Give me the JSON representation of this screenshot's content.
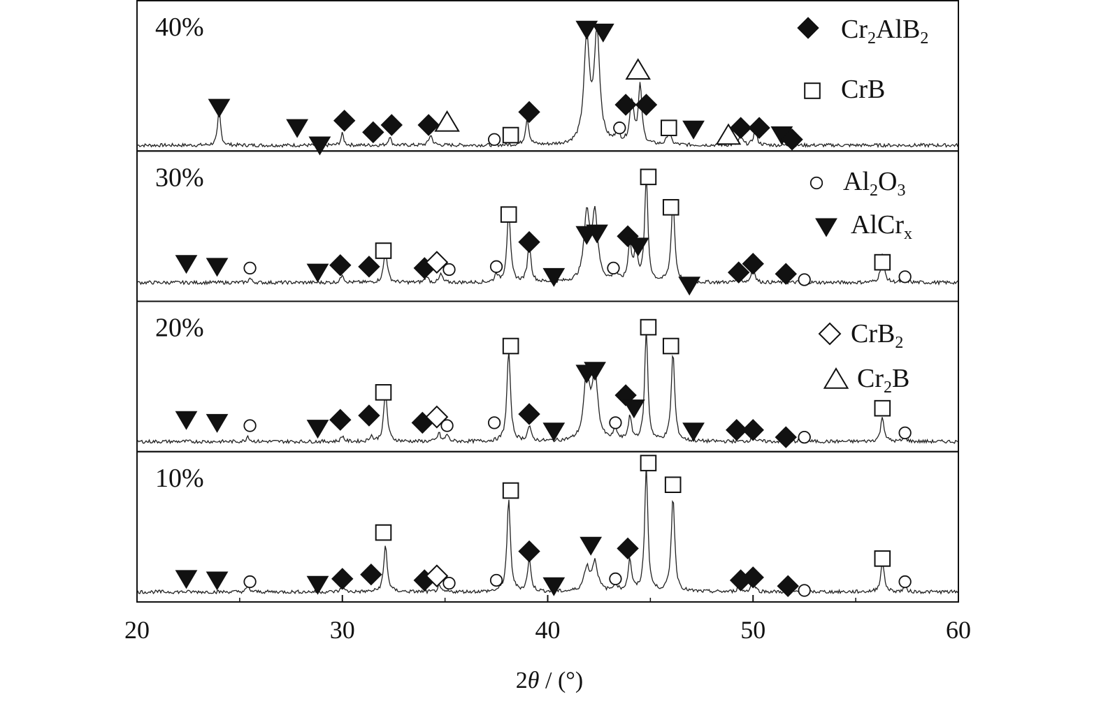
{
  "chart_data": {
    "type": "line",
    "xlabel": "2θ / (°)",
    "x_range": [
      20,
      60
    ],
    "x_ticks": [
      "20",
      "30",
      "40",
      "50",
      "60"
    ],
    "panels": [
      {
        "label": "40%",
        "baseline": 0.03,
        "peaks": [
          {
            "x": 24.0,
            "h": 0.25,
            "w": 0.08
          },
          {
            "x": 30.0,
            "h": 0.08,
            "w": 0.08
          },
          {
            "x": 32.3,
            "h": 0.06,
            "w": 0.08
          },
          {
            "x": 34.3,
            "h": 0.07,
            "w": 0.1
          },
          {
            "x": 39.0,
            "h": 0.18,
            "w": 0.1
          },
          {
            "x": 41.9,
            "h": 0.72,
            "w": 0.16
          },
          {
            "x": 42.4,
            "h": 0.76,
            "w": 0.16
          },
          {
            "x": 43.4,
            "h": 0.1,
            "w": 0.1
          },
          {
            "x": 44.1,
            "h": 0.3,
            "w": 0.12
          },
          {
            "x": 44.5,
            "h": 0.4,
            "w": 0.1
          },
          {
            "x": 45.9,
            "h": 0.1,
            "w": 0.1
          },
          {
            "x": 49.4,
            "h": 0.06,
            "w": 0.1
          },
          {
            "x": 50.1,
            "h": 0.1,
            "w": 0.1
          }
        ],
        "markers": [
          {
            "phase": "AlCrx",
            "x": 24.0,
            "y": 0.29
          },
          {
            "phase": "AlCrx",
            "x": 27.8,
            "y": 0.15
          },
          {
            "phase": "AlCrx",
            "x": 28.9,
            "y": 0.03
          },
          {
            "phase": "Cr2AlB2",
            "x": 30.1,
            "y": 0.2
          },
          {
            "phase": "Cr2AlB2",
            "x": 31.5,
            "y": 0.12
          },
          {
            "phase": "Cr2AlB2",
            "x": 32.4,
            "y": 0.17
          },
          {
            "phase": "Cr2AlB2",
            "x": 34.2,
            "y": 0.17
          },
          {
            "phase": "Cr2B",
            "x": 35.1,
            "y": 0.19
          },
          {
            "phase": "Al2O3",
            "x": 37.4,
            "y": 0.07
          },
          {
            "phase": "CrB",
            "x": 38.2,
            "y": 0.1
          },
          {
            "phase": "Cr2AlB2",
            "x": 39.1,
            "y": 0.26
          },
          {
            "phase": "AlCrx",
            "x": 41.9,
            "y": 0.83
          },
          {
            "phase": "AlCrx",
            "x": 42.7,
            "y": 0.81
          },
          {
            "phase": "Al2O3",
            "x": 43.5,
            "y": 0.15
          },
          {
            "phase": "Cr2AlB2",
            "x": 43.8,
            "y": 0.31
          },
          {
            "phase": "Cr2B",
            "x": 44.4,
            "y": 0.55
          },
          {
            "phase": "Cr2AlB2",
            "x": 44.8,
            "y": 0.31
          },
          {
            "phase": "CrB",
            "x": 45.9,
            "y": 0.15
          },
          {
            "phase": "AlCrx",
            "x": 47.1,
            "y": 0.14
          },
          {
            "phase": "Cr2B",
            "x": 48.8,
            "y": 0.1
          },
          {
            "phase": "Cr2AlB2",
            "x": 49.4,
            "y": 0.15
          },
          {
            "phase": "Cr2AlB2",
            "x": 50.3,
            "y": 0.15
          },
          {
            "phase": "AlCrx",
            "x": 51.4,
            "y": 0.1
          },
          {
            "phase": "Cr2AlB2",
            "x": 51.9,
            "y": 0.07
          }
        ]
      },
      {
        "label": "30%",
        "baseline": 0.12,
        "peaks": [
          {
            "x": 25.5,
            "h": 0.03,
            "w": 0.08
          },
          {
            "x": 30.0,
            "h": 0.06,
            "w": 0.08
          },
          {
            "x": 32.1,
            "h": 0.23,
            "w": 0.1
          },
          {
            "x": 34.1,
            "h": 0.05,
            "w": 0.08
          },
          {
            "x": 34.8,
            "h": 0.06,
            "w": 0.08
          },
          {
            "x": 37.5,
            "h": 0.06,
            "w": 0.08
          },
          {
            "x": 38.1,
            "h": 0.5,
            "w": 0.1
          },
          {
            "x": 39.1,
            "h": 0.26,
            "w": 0.1
          },
          {
            "x": 41.9,
            "h": 0.46,
            "w": 0.16
          },
          {
            "x": 42.3,
            "h": 0.46,
            "w": 0.16
          },
          {
            "x": 43.3,
            "h": 0.08,
            "w": 0.1
          },
          {
            "x": 44.0,
            "h": 0.26,
            "w": 0.1
          },
          {
            "x": 44.3,
            "h": 0.22,
            "w": 0.1
          },
          {
            "x": 44.8,
            "h": 0.74,
            "w": 0.09
          },
          {
            "x": 46.1,
            "h": 0.58,
            "w": 0.1
          },
          {
            "x": 49.3,
            "h": 0.04,
            "w": 0.1
          },
          {
            "x": 50.0,
            "h": 0.13,
            "w": 0.08
          },
          {
            "x": 52.4,
            "h": 0.02,
            "w": 0.08
          },
          {
            "x": 56.3,
            "h": 0.2,
            "w": 0.1
          },
          {
            "x": 57.4,
            "h": 0.05,
            "w": 0.08
          }
        ],
        "markers": [
          {
            "phase": "AlCrx",
            "x": 22.4,
            "y": 0.25
          },
          {
            "phase": "AlCrx",
            "x": 23.9,
            "y": 0.23
          },
          {
            "phase": "Al2O3",
            "x": 25.5,
            "y": 0.22
          },
          {
            "phase": "AlCrx",
            "x": 28.8,
            "y": 0.19
          },
          {
            "phase": "Cr2AlB2",
            "x": 29.9,
            "y": 0.24
          },
          {
            "phase": "Cr2AlB2",
            "x": 31.3,
            "y": 0.23
          },
          {
            "phase": "CrB",
            "x": 32.0,
            "y": 0.34
          },
          {
            "phase": "Cr2AlB2",
            "x": 34.0,
            "y": 0.22
          },
          {
            "phase": "CrB2",
            "x": 34.6,
            "y": 0.26
          },
          {
            "phase": "Al2O3",
            "x": 35.2,
            "y": 0.21
          },
          {
            "phase": "Al2O3",
            "x": 37.5,
            "y": 0.23
          },
          {
            "phase": "CrB",
            "x": 38.1,
            "y": 0.59
          },
          {
            "phase": "Cr2AlB2",
            "x": 39.1,
            "y": 0.4
          },
          {
            "phase": "AlCrx",
            "x": 40.3,
            "y": 0.16
          },
          {
            "phase": "AlCrx",
            "x": 41.9,
            "y": 0.45
          },
          {
            "phase": "AlCrx",
            "x": 42.4,
            "y": 0.46
          },
          {
            "phase": "Al2O3",
            "x": 43.2,
            "y": 0.22
          },
          {
            "phase": "Cr2AlB2",
            "x": 43.9,
            "y": 0.44
          },
          {
            "phase": "AlCrx",
            "x": 44.4,
            "y": 0.37
          },
          {
            "phase": "CrB",
            "x": 44.9,
            "y": 0.85
          },
          {
            "phase": "CrB",
            "x": 46.0,
            "y": 0.64
          },
          {
            "phase": "AlCrx",
            "x": 46.9,
            "y": 0.1
          },
          {
            "phase": "Cr2AlB2",
            "x": 49.3,
            "y": 0.19
          },
          {
            "phase": "Cr2AlB2",
            "x": 50.0,
            "y": 0.25
          },
          {
            "phase": "Cr2AlB2",
            "x": 51.6,
            "y": 0.18
          },
          {
            "phase": "Al2O3",
            "x": 52.5,
            "y": 0.14
          },
          {
            "phase": "CrB",
            "x": 56.3,
            "y": 0.26
          },
          {
            "phase": "Al2O3",
            "x": 57.4,
            "y": 0.16
          }
        ]
      },
      {
        "label": "20%",
        "baseline": 0.06,
        "peaks": [
          {
            "x": 25.4,
            "h": 0.04,
            "w": 0.08
          },
          {
            "x": 30.0,
            "h": 0.04,
            "w": 0.08
          },
          {
            "x": 31.4,
            "h": 0.04,
            "w": 0.08
          },
          {
            "x": 32.1,
            "h": 0.35,
            "w": 0.1
          },
          {
            "x": 34.7,
            "h": 0.06,
            "w": 0.08
          },
          {
            "x": 35.1,
            "h": 0.05,
            "w": 0.08
          },
          {
            "x": 38.1,
            "h": 0.63,
            "w": 0.1
          },
          {
            "x": 39.1,
            "h": 0.1,
            "w": 0.1
          },
          {
            "x": 41.9,
            "h": 0.46,
            "w": 0.16
          },
          {
            "x": 42.3,
            "h": 0.46,
            "w": 0.16
          },
          {
            "x": 43.3,
            "h": 0.08,
            "w": 0.1
          },
          {
            "x": 44.0,
            "h": 0.16,
            "w": 0.1
          },
          {
            "x": 44.8,
            "h": 0.78,
            "w": 0.09
          },
          {
            "x": 46.1,
            "h": 0.61,
            "w": 0.1
          },
          {
            "x": 50.0,
            "h": 0.05,
            "w": 0.08
          },
          {
            "x": 52.4,
            "h": 0.04,
            "w": 0.08
          },
          {
            "x": 56.3,
            "h": 0.17,
            "w": 0.1
          },
          {
            "x": 57.4,
            "h": 0.04,
            "w": 0.08
          }
        ],
        "markers": [
          {
            "phase": "AlCrx",
            "x": 22.4,
            "y": 0.21
          },
          {
            "phase": "AlCrx",
            "x": 23.9,
            "y": 0.19
          },
          {
            "phase": "Al2O3",
            "x": 25.5,
            "y": 0.17
          },
          {
            "phase": "AlCrx",
            "x": 28.8,
            "y": 0.15
          },
          {
            "phase": "Cr2AlB2",
            "x": 29.9,
            "y": 0.21
          },
          {
            "phase": "Cr2AlB2",
            "x": 31.3,
            "y": 0.24
          },
          {
            "phase": "CrB",
            "x": 32.0,
            "y": 0.4
          },
          {
            "phase": "Cr2AlB2",
            "x": 33.9,
            "y": 0.19
          },
          {
            "phase": "CrB2",
            "x": 34.6,
            "y": 0.23
          },
          {
            "phase": "Al2O3",
            "x": 35.1,
            "y": 0.17
          },
          {
            "phase": "Al2O3",
            "x": 37.4,
            "y": 0.19
          },
          {
            "phase": "CrB",
            "x": 38.2,
            "y": 0.72
          },
          {
            "phase": "Cr2AlB2",
            "x": 39.1,
            "y": 0.25
          },
          {
            "phase": "AlCrx",
            "x": 40.3,
            "y": 0.13
          },
          {
            "phase": "AlCrx",
            "x": 41.9,
            "y": 0.53
          },
          {
            "phase": "AlCrx",
            "x": 42.3,
            "y": 0.55
          },
          {
            "phase": "Al2O3",
            "x": 43.3,
            "y": 0.19
          },
          {
            "phase": "Cr2AlB2",
            "x": 43.8,
            "y": 0.38
          },
          {
            "phase": "AlCrx",
            "x": 44.2,
            "y": 0.29
          },
          {
            "phase": "CrB",
            "x": 44.9,
            "y": 0.85
          },
          {
            "phase": "CrB",
            "x": 46.0,
            "y": 0.72
          },
          {
            "phase": "AlCrx",
            "x": 47.1,
            "y": 0.13
          },
          {
            "phase": "Cr2AlB2",
            "x": 49.2,
            "y": 0.14
          },
          {
            "phase": "Cr2AlB2",
            "x": 50.0,
            "y": 0.14
          },
          {
            "phase": "Cr2AlB2",
            "x": 51.6,
            "y": 0.09
          },
          {
            "phase": "Al2O3",
            "x": 52.5,
            "y": 0.09
          },
          {
            "phase": "CrB",
            "x": 56.3,
            "y": 0.29
          },
          {
            "phase": "Al2O3",
            "x": 57.4,
            "y": 0.12
          }
        ]
      },
      {
        "label": "10%",
        "baseline": 0.06,
        "peaks": [
          {
            "x": 25.4,
            "h": 0.04,
            "w": 0.08
          },
          {
            "x": 30.0,
            "h": 0.04,
            "w": 0.08
          },
          {
            "x": 32.1,
            "h": 0.32,
            "w": 0.1
          },
          {
            "x": 34.7,
            "h": 0.04,
            "w": 0.08
          },
          {
            "x": 38.1,
            "h": 0.63,
            "w": 0.1
          },
          {
            "x": 39.1,
            "h": 0.22,
            "w": 0.1
          },
          {
            "x": 41.9,
            "h": 0.16,
            "w": 0.16
          },
          {
            "x": 42.3,
            "h": 0.2,
            "w": 0.16
          },
          {
            "x": 43.3,
            "h": 0.06,
            "w": 0.1
          },
          {
            "x": 44.0,
            "h": 0.22,
            "w": 0.1
          },
          {
            "x": 44.8,
            "h": 0.88,
            "w": 0.09
          },
          {
            "x": 46.1,
            "h": 0.66,
            "w": 0.1
          },
          {
            "x": 49.3,
            "h": 0.04,
            "w": 0.08
          },
          {
            "x": 50.0,
            "h": 0.11,
            "w": 0.08
          },
          {
            "x": 52.4,
            "h": 0.04,
            "w": 0.08
          },
          {
            "x": 56.3,
            "h": 0.21,
            "w": 0.1
          },
          {
            "x": 57.4,
            "h": 0.04,
            "w": 0.08
          }
        ],
        "markers": [
          {
            "phase": "AlCrx",
            "x": 22.4,
            "y": 0.15
          },
          {
            "phase": "AlCrx",
            "x": 23.9,
            "y": 0.14
          },
          {
            "phase": "Al2O3",
            "x": 25.5,
            "y": 0.13
          },
          {
            "phase": "AlCrx",
            "x": 28.8,
            "y": 0.11
          },
          {
            "phase": "Cr2AlB2",
            "x": 30.0,
            "y": 0.15
          },
          {
            "phase": "Cr2AlB2",
            "x": 31.4,
            "y": 0.18
          },
          {
            "phase": "CrB",
            "x": 32.0,
            "y": 0.47
          },
          {
            "phase": "Cr2AlB2",
            "x": 34.0,
            "y": 0.14
          },
          {
            "phase": "CrB2",
            "x": 34.6,
            "y": 0.17
          },
          {
            "phase": "Al2O3",
            "x": 35.2,
            "y": 0.12
          },
          {
            "phase": "Al2O3",
            "x": 37.5,
            "y": 0.14
          },
          {
            "phase": "CrB",
            "x": 38.2,
            "y": 0.76
          },
          {
            "phase": "Cr2AlB2",
            "x": 39.1,
            "y": 0.34
          },
          {
            "phase": "AlCrx",
            "x": 40.3,
            "y": 0.1
          },
          {
            "phase": "AlCrx",
            "x": 42.1,
            "y": 0.38
          },
          {
            "phase": "Al2O3",
            "x": 43.3,
            "y": 0.15
          },
          {
            "phase": "Cr2AlB2",
            "x": 43.9,
            "y": 0.36
          },
          {
            "phase": "CrB",
            "x": 44.9,
            "y": 0.95
          },
          {
            "phase": "CrB",
            "x": 46.1,
            "y": 0.8
          },
          {
            "phase": "Cr2AlB2",
            "x": 49.4,
            "y": 0.14
          },
          {
            "phase": "Cr2AlB2",
            "x": 50.0,
            "y": 0.16
          },
          {
            "phase": "Cr2AlB2",
            "x": 51.7,
            "y": 0.1
          },
          {
            "phase": "Al2O3",
            "x": 52.5,
            "y": 0.07
          },
          {
            "phase": "CrB",
            "x": 56.3,
            "y": 0.29
          },
          {
            "phase": "Al2O3",
            "x": 57.4,
            "y": 0.13
          }
        ]
      }
    ],
    "legend": [
      {
        "phase": "Cr2AlB2",
        "label": "Cr",
        "sub1": "2",
        "mid": "AlB",
        "sub2": "2"
      },
      {
        "phase": "CrB",
        "label": "CrB",
        "sub1": "",
        "mid": "",
        "sub2": ""
      },
      {
        "phase": "Al2O3",
        "label": "Al",
        "sub1": "2",
        "mid": "O",
        "sub2": "3"
      },
      {
        "phase": "AlCrx",
        "label": "AlCr",
        "sub1": "x",
        "mid": "",
        "sub2": ""
      },
      {
        "phase": "CrB2",
        "label": "CrB",
        "sub1": "2",
        "mid": "",
        "sub2": ""
      },
      {
        "phase": "Cr2B",
        "label": "Cr",
        "sub1": "2",
        "mid": "B",
        "sub2": ""
      }
    ],
    "marker_styles": {
      "Cr2AlB2": "filled-diamond",
      "CrB": "open-square",
      "Al2O3": "open-circle",
      "AlCrx": "filled-down-triangle",
      "CrB2": "open-diamond",
      "Cr2B": "open-up-triangle"
    },
    "grid": false,
    "legend_position": "top-right"
  }
}
